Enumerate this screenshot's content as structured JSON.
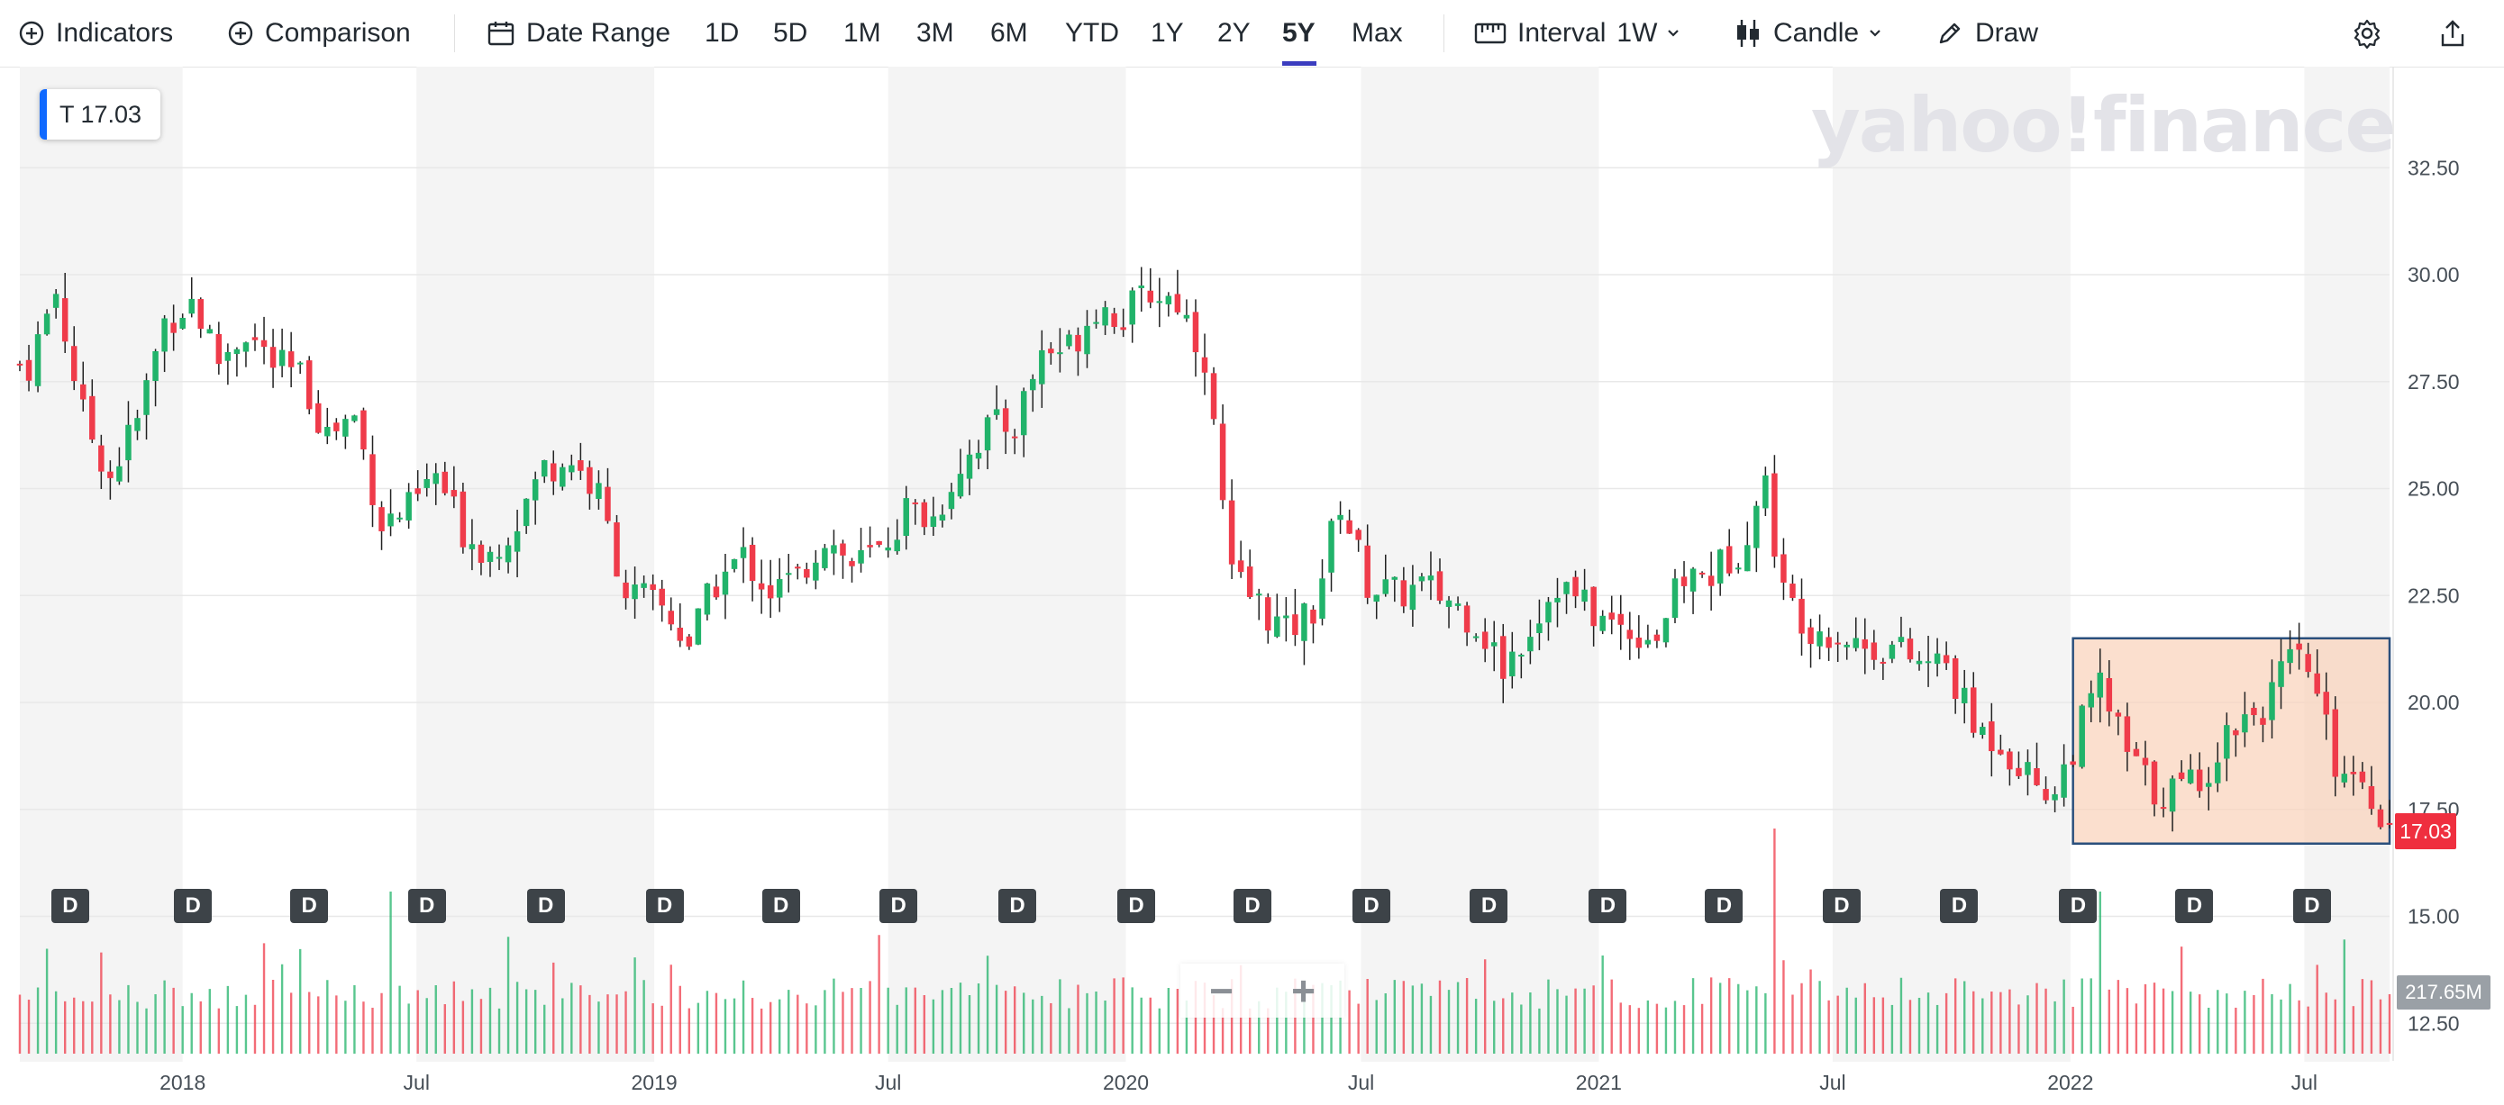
{
  "toolbar": {
    "indicators_label": "Indicators",
    "comparison_label": "Comparison",
    "date_range_label": "Date Range",
    "ranges": [
      "1D",
      "5D",
      "1M",
      "3M",
      "6M",
      "YTD",
      "1Y",
      "2Y",
      "5Y",
      "Max"
    ],
    "active_range": "5Y",
    "interval_label": "Interval",
    "interval_value": "1W",
    "chart_type_label": "Candle",
    "draw_label": "Draw",
    "accent_color": "#3b3dbf"
  },
  "quote": {
    "symbol": "T",
    "price": "17.03",
    "badge_text": "T 17.03"
  },
  "watermark": "yahoo!finance",
  "last_price_tag": "17.03",
  "volume_tag": "217.65M",
  "zoom": {
    "minus": "−",
    "plus": "+"
  },
  "dividend_marker_label": "D",
  "colors": {
    "up": "#21b36a",
    "down": "#ef3b4a",
    "highlight_fill": "#f9d4bd",
    "highlight_stroke": "#2a4f7c"
  },
  "chart_data": {
    "type": "candlestick",
    "title": "",
    "symbol": "T",
    "interval": "1W",
    "range": "5Y",
    "y_ticks": [
      "32.50",
      "30.00",
      "27.50",
      "25.00",
      "22.50",
      "20.00",
      "17.50",
      "15.00",
      "12.50"
    ],
    "ylim": [
      12.0,
      35.0
    ],
    "x_ticks": [
      "2018",
      "Jul",
      "2019",
      "Jul",
      "2020",
      "Jul",
      "2021",
      "Jul",
      "2022",
      "Jul"
    ],
    "x_tick_dates": [
      "2018-01-01",
      "2018-07-01",
      "2019-01-01",
      "2019-07-01",
      "2020-01-01",
      "2020-07-01",
      "2021-01-01",
      "2021-07-01",
      "2022-01-01",
      "2022-07-01"
    ],
    "x_start": "2017-08-28",
    "x_end": "2022-09-05",
    "grid": true,
    "volume_axis_max_label": "217.65M",
    "close_series": [
      [
        "2017-09-04",
        27.9
      ],
      [
        "2017-09-25",
        29.6
      ],
      [
        "2017-10-16",
        26.7
      ],
      [
        "2017-11-06",
        25.3
      ],
      [
        "2017-11-27",
        26.6
      ],
      [
        "2017-12-18",
        28.9
      ],
      [
        "2018-01-08",
        29.4
      ],
      [
        "2018-01-29",
        28.0
      ],
      [
        "2018-02-19",
        28.7
      ],
      [
        "2018-03-12",
        27.9
      ],
      [
        "2018-04-02",
        27.6
      ],
      [
        "2018-04-23",
        26.3
      ],
      [
        "2018-05-14",
        26.7
      ],
      [
        "2018-06-04",
        24.2
      ],
      [
        "2018-06-25",
        24.5
      ],
      [
        "2018-07-16",
        25.3
      ],
      [
        "2018-08-06",
        24.0
      ],
      [
        "2018-08-27",
        23.5
      ],
      [
        "2018-09-17",
        24.3
      ],
      [
        "2018-10-08",
        25.5
      ],
      [
        "2018-10-29",
        25.7
      ],
      [
        "2018-11-19",
        24.8
      ],
      [
        "2018-12-10",
        22.6
      ],
      [
        "2019-01-07",
        22.2
      ],
      [
        "2019-01-28",
        21.4
      ],
      [
        "2019-02-18",
        22.8
      ],
      [
        "2019-03-11",
        23.4
      ],
      [
        "2019-04-01",
        22.6
      ],
      [
        "2019-04-22",
        22.9
      ],
      [
        "2019-05-13",
        23.9
      ],
      [
        "2019-06-03",
        23.2
      ],
      [
        "2019-06-24",
        23.5
      ],
      [
        "2019-07-15",
        24.5
      ],
      [
        "2019-08-05",
        24.3
      ],
      [
        "2019-08-26",
        25.6
      ],
      [
        "2019-09-16",
        26.4
      ],
      [
        "2019-10-07",
        26.5
      ],
      [
        "2019-10-28",
        28.2
      ],
      [
        "2019-11-18",
        28.3
      ],
      [
        "2019-12-09",
        29.3
      ],
      [
        "2019-12-30",
        29.0
      ],
      [
        "2020-01-20",
        29.6
      ],
      [
        "2020-02-10",
        29.4
      ],
      [
        "2020-03-02",
        28.1
      ],
      [
        "2020-03-23",
        22.9
      ],
      [
        "2020-04-13",
        22.3
      ],
      [
        "2020-05-04",
        21.6
      ],
      [
        "2020-05-25",
        22.2
      ],
      [
        "2020-06-15",
        24.7
      ],
      [
        "2020-07-06",
        22.8
      ],
      [
        "2020-07-27",
        22.5
      ],
      [
        "2020-08-17",
        22.7
      ],
      [
        "2020-09-07",
        22.4
      ],
      [
        "2020-09-28",
        21.9
      ],
      [
        "2020-10-19",
        20.8
      ],
      [
        "2020-11-09",
        21.8
      ],
      [
        "2020-11-30",
        22.8
      ],
      [
        "2021-01-04",
        21.9
      ],
      [
        "2021-01-25",
        21.7
      ],
      [
        "2021-02-15",
        21.6
      ],
      [
        "2021-03-08",
        22.9
      ],
      [
        "2021-03-29",
        23.0
      ],
      [
        "2021-04-19",
        23.6
      ],
      [
        "2021-05-10",
        25.1
      ],
      [
        "2021-05-24",
        22.5
      ],
      [
        "2021-06-14",
        21.8
      ],
      [
        "2021-07-05",
        21.6
      ],
      [
        "2021-07-26",
        21.3
      ],
      [
        "2021-08-16",
        21.3
      ],
      [
        "2021-09-06",
        20.9
      ],
      [
        "2021-09-27",
        20.9
      ],
      [
        "2021-10-18",
        19.4
      ],
      [
        "2021-11-08",
        19.1
      ],
      [
        "2021-11-29",
        18.3
      ],
      [
        "2021-12-20",
        17.9
      ],
      [
        "2022-01-10",
        19.5
      ],
      [
        "2022-01-24",
        20.4
      ],
      [
        "2022-02-14",
        18.8
      ],
      [
        "2022-03-07",
        17.9
      ],
      [
        "2022-03-28",
        18.0
      ],
      [
        "2022-04-18",
        18.5
      ],
      [
        "2022-05-09",
        19.6
      ],
      [
        "2022-05-30",
        19.9
      ],
      [
        "2022-06-20",
        20.9
      ],
      [
        "2022-07-04",
        20.8
      ],
      [
        "2022-07-25",
        18.6
      ],
      [
        "2022-08-15",
        18.3
      ],
      [
        "2022-09-05",
        17.03
      ]
    ],
    "dividend_dates": [
      "2017-10-06",
      "2018-01-09",
      "2018-04-09",
      "2018-07-09",
      "2018-10-09",
      "2019-01-09",
      "2019-04-09",
      "2019-07-09",
      "2019-10-09",
      "2020-01-09",
      "2020-04-08",
      "2020-07-09",
      "2020-10-08",
      "2021-01-08",
      "2021-04-08",
      "2021-07-08",
      "2021-10-07",
      "2022-01-07",
      "2022-04-07",
      "2022-07-07"
    ],
    "highlight_region": {
      "x_start": "2022-01-03",
      "x_end": "2022-09-05",
      "y_low": 16.7,
      "y_high": 21.5
    },
    "volume_spikes": [
      [
        "2018-06-11",
        "high"
      ],
      [
        "2021-05-17",
        "highest"
      ],
      [
        "2022-01-24",
        "high"
      ]
    ]
  }
}
